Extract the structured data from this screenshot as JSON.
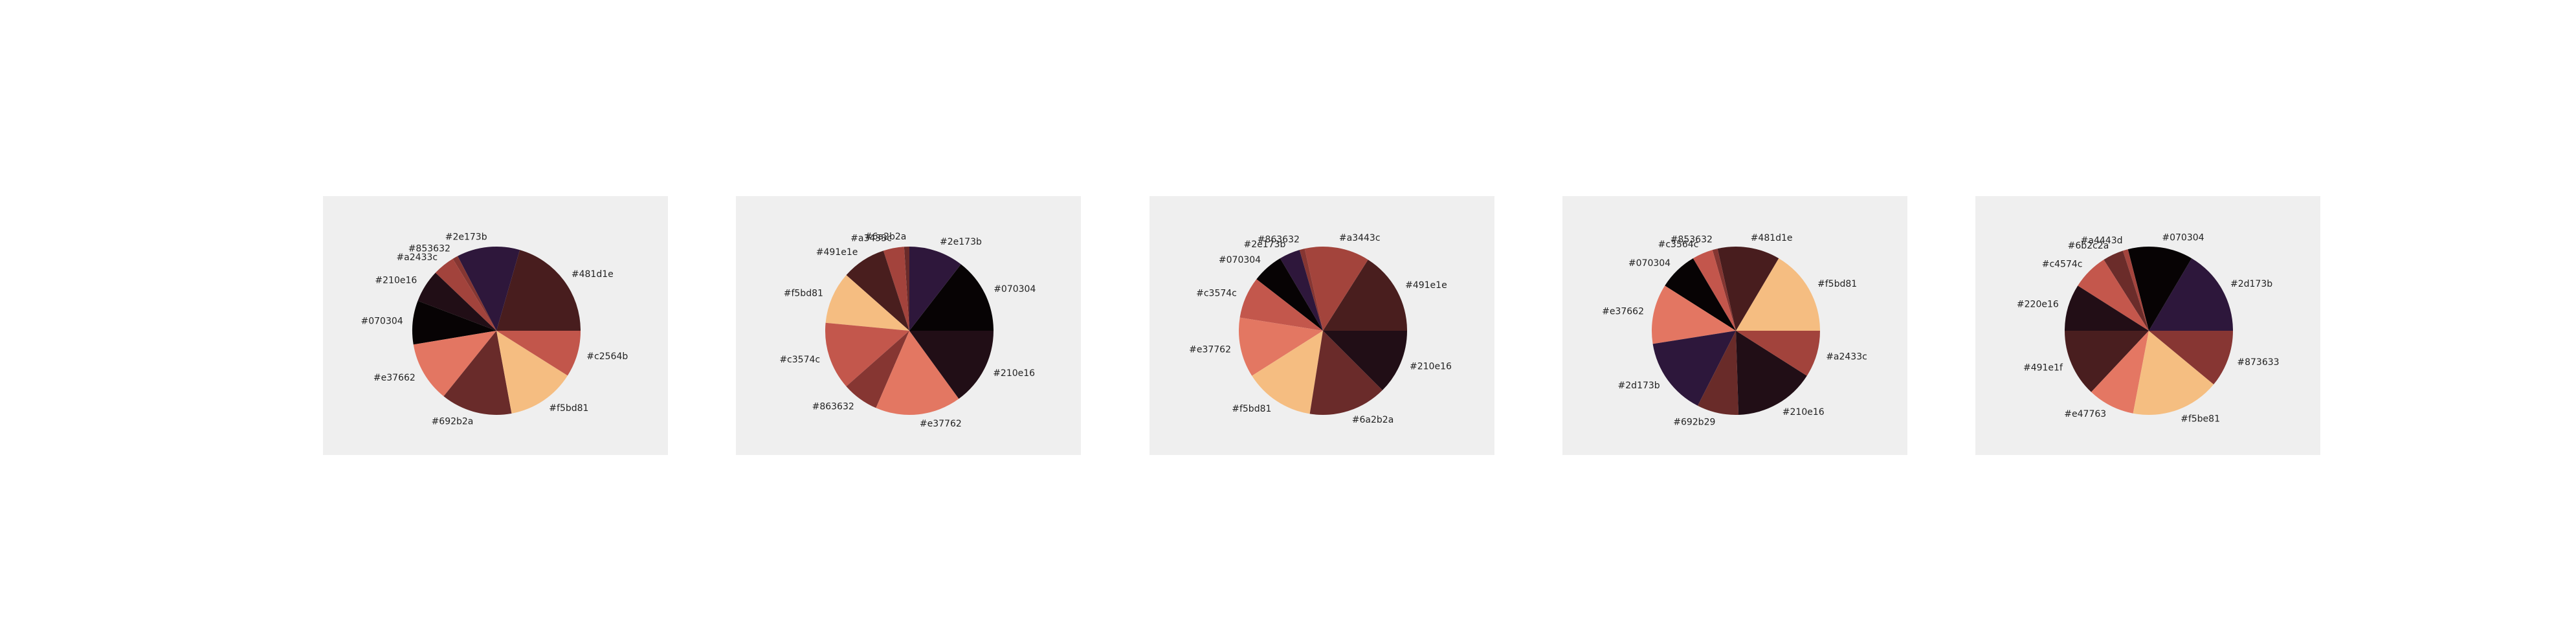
{
  "chart_data": [
    {
      "type": "pie",
      "slices": [
        {
          "label": "#481d1e",
          "color": "#481d1e",
          "value": 19.5
        },
        {
          "label": "#2e173b",
          "color": "#2e173b",
          "value": 11.5
        },
        {
          "label": "#853632",
          "color": "#853632",
          "value": 1.0
        },
        {
          "label": "#a2433c",
          "color": "#a2433c",
          "value": 4.0
        },
        {
          "label": "#210e16",
          "color": "#210e16",
          "value": 6.0
        },
        {
          "label": "#070304",
          "color": "#070304",
          "value": 8.0
        },
        {
          "label": "#e37662",
          "color": "#e37662",
          "value": 11.0
        },
        {
          "label": "#692b2a",
          "color": "#692b2a",
          "value": 13.0
        },
        {
          "label": "#f5bd81",
          "color": "#f5bd81",
          "value": 12.5
        },
        {
          "label": "#c2564b",
          "color": "#c2564b",
          "value": 8.5
        }
      ]
    },
    {
      "type": "pie",
      "slices": [
        {
          "label": "#070304",
          "color": "#070304",
          "value": 14.5
        },
        {
          "label": "#2e173b",
          "color": "#2e173b",
          "value": 10.5
        },
        {
          "label": "#6a2b2a",
          "color": "#6a2b2a",
          "value": 1.0
        },
        {
          "label": "#a3433c",
          "color": "#a3433c",
          "value": 4.0
        },
        {
          "label": "#491e1e",
          "color": "#491e1e",
          "value": 8.5
        },
        {
          "label": "#f5bd81",
          "color": "#f5bd81",
          "value": 10.0
        },
        {
          "label": "#c3574c",
          "color": "#c3574c",
          "value": 13.0
        },
        {
          "label": "#863632",
          "color": "#863632",
          "value": 7.0
        },
        {
          "label": "#e37762",
          "color": "#e37762",
          "value": 16.5
        },
        {
          "label": "#210e16",
          "color": "#210e16",
          "value": 15.0
        }
      ]
    },
    {
      "type": "pie",
      "slices": [
        {
          "label": "#491e1e",
          "color": "#491e1e",
          "value": 16.0
        },
        {
          "label": "#a3443c",
          "color": "#a3443c",
          "value": 12.5
        },
        {
          "label": "#863632",
          "color": "#863632",
          "value": 1.0
        },
        {
          "label": "#2e173b",
          "color": "#2e173b",
          "value": 4.0
        },
        {
          "label": "#070304",
          "color": "#070304",
          "value": 6.0
        },
        {
          "label": "#c3574c",
          "color": "#c3574c",
          "value": 8.0
        },
        {
          "label": "#e37762",
          "color": "#e37762",
          "value": 11.5
        },
        {
          "label": "#f5bd81",
          "color": "#f5bd81",
          "value": 13.5
        },
        {
          "label": "#6a2b2a",
          "color": "#6a2b2a",
          "value": 15.0
        },
        {
          "label": "#210e16",
          "color": "#210e16",
          "value": 12.5
        }
      ]
    },
    {
      "type": "pie",
      "slices": [
        {
          "label": "#f5bd81",
          "color": "#f5bd81",
          "value": 16.5
        },
        {
          "label": "#481d1e",
          "color": "#481d1e",
          "value": 12.0
        },
        {
          "label": "#853632",
          "color": "#853632",
          "value": 1.0
        },
        {
          "label": "#c3564c",
          "color": "#c3564c",
          "value": 4.0
        },
        {
          "label": "#070304",
          "color": "#070304",
          "value": 7.5
        },
        {
          "label": "#e37662",
          "color": "#e37662",
          "value": 11.5
        },
        {
          "label": "#2d173b",
          "color": "#2d173b",
          "value": 15.0
        },
        {
          "label": "#692b29",
          "color": "#692b29",
          "value": 8.0
        },
        {
          "label": "#210e16",
          "color": "#210e16",
          "value": 15.5
        },
        {
          "label": "#a2433c",
          "color": "#a2433c",
          "value": 9.0
        }
      ]
    },
    {
      "type": "pie",
      "slices": [
        {
          "label": "#2d173b",
          "color": "#2d173b",
          "value": 16.5
        },
        {
          "label": "#070304",
          "color": "#070304",
          "value": 12.5
        },
        {
          "label": "#a4443d",
          "color": "#a4443d",
          "value": 1.0
        },
        {
          "label": "#6b2c2a",
          "color": "#6b2c2a",
          "value": 4.0
        },
        {
          "label": "#c4574c",
          "color": "#c4574c",
          "value": 7.0
        },
        {
          "label": "#220e16",
          "color": "#220e16",
          "value": 9.0
        },
        {
          "label": "#491e1f",
          "color": "#491e1f",
          "value": 13.0
        },
        {
          "label": "#e47763",
          "color": "#e47763",
          "value": 9.0
        },
        {
          "label": "#f5be81",
          "color": "#f5be81",
          "value": 17.0
        },
        {
          "label": "#873633",
          "color": "#873633",
          "value": 11.0
        }
      ]
    }
  ]
}
